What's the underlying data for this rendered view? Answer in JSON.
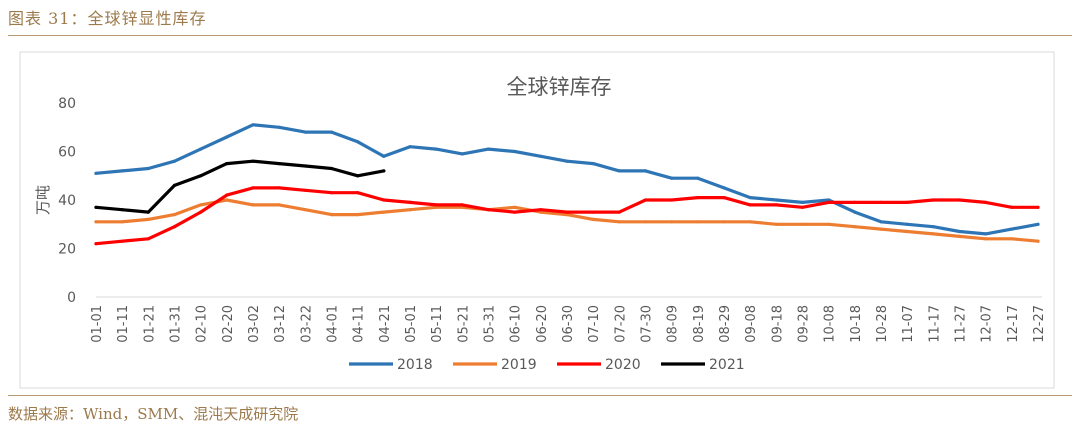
{
  "figure_title": "图表 31：全球锌显性库存",
  "source_note": "数据来源：Wind，SMM、混沌天成研究院",
  "colors": {
    "2018": "#2e75b6",
    "2019": "#ed7d31",
    "2020": "#ff0000",
    "2021": "#000000",
    "frame": "#d9d9d9",
    "grid": "#d9d9d9",
    "text": "#595959",
    "accent": "#b89a6e"
  },
  "chart_data": {
    "type": "line",
    "title": "全球锌库存",
    "xlabel": "",
    "ylabel": "万吨",
    "ylim": [
      0,
      80
    ],
    "yticks": [
      0,
      20,
      40,
      60,
      80
    ],
    "grid": false,
    "legend_position": "bottom",
    "categories": [
      "01-01",
      "01-11",
      "01-21",
      "01-31",
      "02-10",
      "02-20",
      "03-02",
      "03-12",
      "03-22",
      "04-01",
      "04-11",
      "04-21",
      "05-01",
      "05-11",
      "05-21",
      "05-31",
      "06-10",
      "06-20",
      "06-30",
      "07-10",
      "07-20",
      "07-30",
      "08-09",
      "08-19",
      "08-29",
      "09-08",
      "09-18",
      "09-28",
      "10-08",
      "10-18",
      "10-28",
      "11-07",
      "11-17",
      "11-27",
      "12-07",
      "12-17",
      "12-27"
    ],
    "series": [
      {
        "name": "2018",
        "values": [
          51,
          52,
          53,
          56,
          61,
          66,
          71,
          70,
          68,
          68,
          64,
          58,
          62,
          61,
          59,
          61,
          60,
          58,
          56,
          55,
          52,
          52,
          49,
          49,
          45,
          41,
          40,
          39,
          40,
          35,
          31,
          30,
          29,
          27,
          26,
          28,
          30
        ]
      },
      {
        "name": "2019",
        "values": [
          31,
          31,
          32,
          34,
          38,
          40,
          38,
          38,
          36,
          34,
          34,
          35,
          36,
          37,
          37,
          36,
          37,
          35,
          34,
          32,
          31,
          31,
          31,
          31,
          31,
          31,
          30,
          30,
          30,
          29,
          28,
          27,
          26,
          25,
          24,
          24,
          23
        ]
      },
      {
        "name": "2020",
        "values": [
          22,
          23,
          24,
          29,
          35,
          42,
          45,
          45,
          44,
          43,
          43,
          40,
          39,
          38,
          38,
          36,
          35,
          36,
          35,
          35,
          35,
          40,
          40,
          41,
          41,
          38,
          38,
          37,
          39,
          39,
          39,
          39,
          40,
          40,
          39,
          37,
          37
        ]
      },
      {
        "name": "2021",
        "values": [
          37,
          36,
          35,
          46,
          50,
          55,
          56,
          55,
          54,
          53,
          50,
          52,
          null,
          null,
          null,
          null,
          null,
          null,
          null,
          null,
          null,
          null,
          null,
          null,
          null,
          null,
          null,
          null,
          null,
          null,
          null,
          null,
          null,
          null,
          null,
          null,
          null
        ]
      }
    ]
  }
}
